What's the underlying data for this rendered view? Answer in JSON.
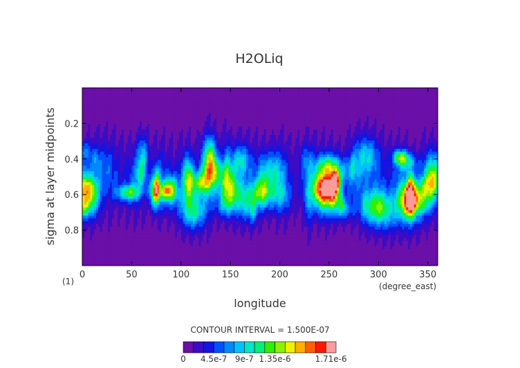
{
  "chart_data": {
    "type": "heatmap",
    "subtype": "filled-contour",
    "title": "H2OLiq",
    "xlabel": "longitude",
    "ylabel": "sigma at layer midpoints",
    "x_unit": "(degree_east)",
    "corner_label": "(1)",
    "xlim": [
      0,
      360
    ],
    "ylim": [
      1.0,
      0.0
    ],
    "y_inverted": true,
    "x_ticks": [
      "0",
      "50",
      "100",
      "150",
      "200",
      "250",
      "300",
      "350"
    ],
    "y_ticks": [
      "0.2",
      "0.4",
      "0.6",
      "0.8"
    ],
    "contour_interval_text": "CONTOUR INTERVAL = 1.500E-07",
    "colorbar": {
      "min": 0,
      "max": 1.71e-06,
      "interval": 1.5e-07,
      "labels": [
        "0",
        "4.5e-7",
        "9e-7",
        "1.35e-6",
        "1.71e-6"
      ],
      "colors": [
        "#6a0fa8",
        "#3b0cc4",
        "#1414e0",
        "#0050ff",
        "#0088ff",
        "#00c0ff",
        "#00e6c8",
        "#00f07a",
        "#30f000",
        "#8cf000",
        "#f0f000",
        "#ffb000",
        "#ff6000",
        "#ff1800",
        "#ff9a9a"
      ]
    },
    "grid": false
  }
}
